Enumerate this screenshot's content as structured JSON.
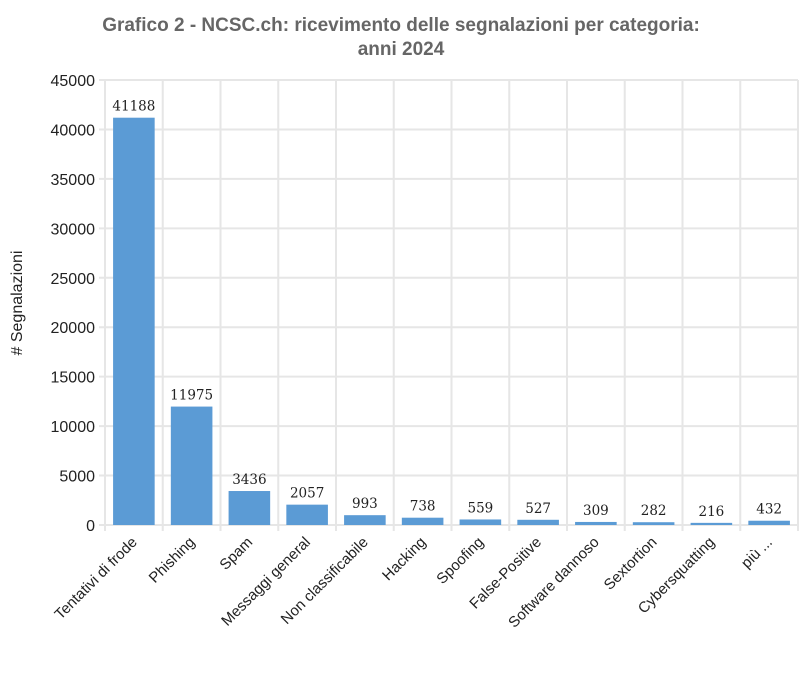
{
  "chart_data": {
    "type": "bar",
    "title": "Grafico 2 - NCSC.ch: ricevimento delle segnalazioni per categoria:",
    "subtitle": "anni 2024",
    "xlabel": "",
    "ylabel": "# Segnalazioni",
    "ylim": [
      0,
      45000
    ],
    "yticks": [
      0,
      5000,
      10000,
      15000,
      20000,
      25000,
      30000,
      35000,
      40000,
      45000
    ],
    "categories": [
      "Tentativi di frode",
      "Phishing",
      "Spam",
      "Messaggi general",
      "Non classificabile",
      "Hacking",
      "Spoofing",
      "False-Positive",
      "Software dannoso",
      "Sextortion",
      "Cybersquatting",
      "più ..."
    ],
    "values": [
      41188,
      11975,
      3436,
      2057,
      993,
      738,
      559,
      527,
      309,
      282,
      216,
      432
    ],
    "bar_color": "#5b9bd5",
    "grid_color": "#e6e6e6",
    "grid": true,
    "data_labels": true
  }
}
